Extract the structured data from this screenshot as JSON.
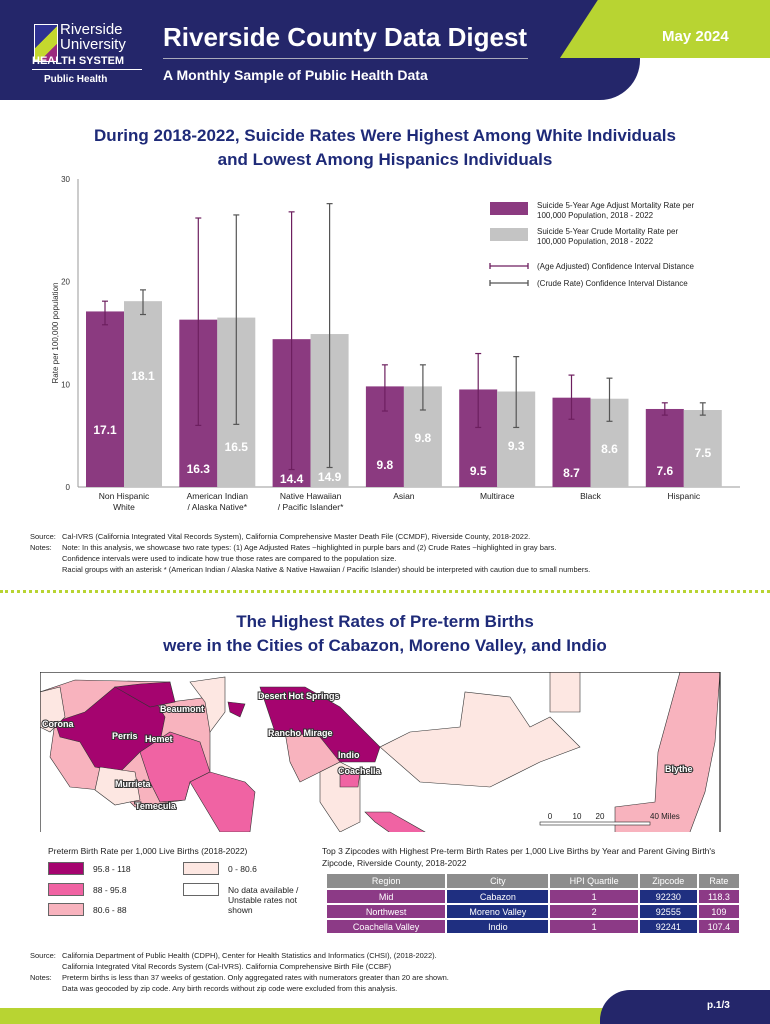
{
  "header": {
    "logo": {
      "line1": "Riverside",
      "line2": "University",
      "line3": "HEALTH SYSTEM",
      "line4": "Public Health"
    },
    "title": "Riverside County Data Digest",
    "subtitle": "A Monthly Sample of Public Health Data",
    "date": "May 2024"
  },
  "section1": {
    "title_line1": "During 2018-2022, Suicide Rates Were Highest Among White Individuals",
    "title_line2": "and Lowest Among Hispanics Individuals",
    "source_label": "Source:",
    "source": "Cal-IVRS (California Integrated Vital Records System), California Comprehensive Master Death File (CCMDF), Riverside County, 2018-2022.",
    "notes_label": "Notes:",
    "notes": [
      "Note: In this analysis, we showcase two rate types: (1) Age Adjusted Rates ~highlighted in purple bars and (2) Crude Rates ~highlighted in gray bars.",
      "Confidence intervals were used to indicate how true those rates are compared to the population size.",
      "Racial groups with an asterisk * (American Indian / Alaska Native & Native Hawaiian / Pacific Islander) should be interpreted with caution due to small numbers."
    ]
  },
  "chart_data": {
    "type": "bar",
    "title": "During 2018-2022, Suicide Rates Were Highest Among White Individuals and Lowest Among Hispanics Individuals",
    "ylabel": "Rate per 100,000 population",
    "xlabel": "",
    "ylim": [
      0,
      30
    ],
    "yticks": [
      "0",
      "10",
      "20",
      "30"
    ],
    "categories": [
      [
        "Non Hispanic",
        "White"
      ],
      [
        "American Indian",
        "/ Alaska Native*"
      ],
      [
        "Native Hawaiian",
        "/ Pacific Islander*"
      ],
      [
        "Asian",
        ""
      ],
      [
        "Multirace",
        ""
      ],
      [
        "Black",
        ""
      ],
      [
        "Hispanic",
        ""
      ]
    ],
    "series": [
      {
        "name": "Suicide 5-Year Age Adjust Mortality Rate per 100,000 Population, 2018 - 2022",
        "name_lines": [
          "Suicide 5-Year Age Adjust Mortality Rate per",
          "100,000 Population, 2018 - 2022"
        ],
        "color": "#8b3a80",
        "values": [
          17.1,
          16.3,
          14.4,
          9.8,
          9.5,
          8.7,
          7.6
        ],
        "labels": [
          "17.1",
          "16.3",
          "14.4",
          "9.8",
          "9.5",
          "8.7",
          "7.6"
        ],
        "ci_low": [
          15.8,
          6.0,
          1.7,
          7.4,
          5.8,
          6.6,
          7.0
        ],
        "ci_high": [
          18.1,
          26.2,
          26.8,
          11.9,
          13.0,
          10.9,
          8.2
        ]
      },
      {
        "name": "Suicide 5-Year Crude Mortality Rate per 100,000 Population, 2018 - 2022",
        "name_lines": [
          "Suicide 5-Year Crude Mortality Rate per",
          "100,000 Population, 2018 - 2022"
        ],
        "color": "#c4c4c4",
        "values": [
          18.1,
          16.5,
          14.9,
          9.8,
          9.3,
          8.6,
          7.5
        ],
        "labels": [
          "18.1",
          "16.5",
          "14.9",
          "9.8",
          "9.3",
          "8.6",
          "7.5"
        ],
        "ci_low": [
          16.8,
          6.1,
          1.9,
          7.5,
          5.8,
          6.4,
          7.0
        ],
        "ci_high": [
          19.2,
          26.5,
          27.6,
          11.9,
          12.7,
          10.6,
          8.2
        ]
      }
    ],
    "legend_ci": [
      "(Age Adjusted) Confidence Interval Distance",
      "(Crude Rate) Confidence Interval Distance"
    ],
    "legend": "top-right",
    "grid": false
  },
  "section2": {
    "title_line1": "The Highest Rates of Pre-term Births",
    "title_line2": "were in the Cities of Cabazon, Moreno Valley, and Indio",
    "map_labels": [
      "Corona",
      "Beaumont",
      "Perris",
      "Hemet",
      "Murrieta",
      "Temecula",
      "Desert Hot Springs",
      "Rancho Mirage",
      "Indio",
      "Coachella",
      "Blythe"
    ],
    "scale": [
      "0",
      "10",
      "20",
      "40 Miles"
    ],
    "legend_title": "Preterm Birth Rate per 1,000 Live Births (2018-2022)",
    "legend": [
      {
        "label": "95.8 - 118",
        "color": "#a5046f"
      },
      {
        "label": "88 - 95.8",
        "color": "#f063a3"
      },
      {
        "label": "80.6 - 88",
        "color": "#f8b3be"
      },
      {
        "label": "0 - 80.6",
        "color": "#fde7e2"
      },
      {
        "label": "No data available / Unstable rates not shown",
        "color": "#ffffff"
      }
    ],
    "table_title": "Top 3 Zipcodes with Highest Pre-term Birth Rates per 1,000 Live Births by Year and Parent Giving Birth's Zipcode, Riverside County, 2018-2022",
    "table": {
      "headers": [
        "Region",
        "City",
        "HPI Quartile",
        "Zipcode",
        "Rate"
      ],
      "rows": [
        [
          "Mid",
          "Cabazon",
          "1",
          "92230",
          "118.3"
        ],
        [
          "Northwest",
          "Moreno Valley",
          "2",
          "92555",
          "109"
        ],
        [
          "Coachella Valley",
          "Indio",
          "1",
          "92241",
          "107.4"
        ]
      ]
    },
    "source_label": "Source:",
    "source": [
      "California Department of Public Health (CDPH), Center for Health Statistics and Informatics (CHSI), (2018-2022).",
      "California Integrated Vital Records System (Cal-IVRS). California Comprehensive Birth File (CCBF)"
    ],
    "notes_label": "Notes:",
    "notes": [
      "Preterm births is less than 37 weeks of gestation. Only aggregated rates with numerators greater than 20 are shown.",
      "Data was geocoded by zip code. Any birth records without zip code were excluded from this analysis."
    ]
  },
  "footer": {
    "page": "p.1/3"
  }
}
